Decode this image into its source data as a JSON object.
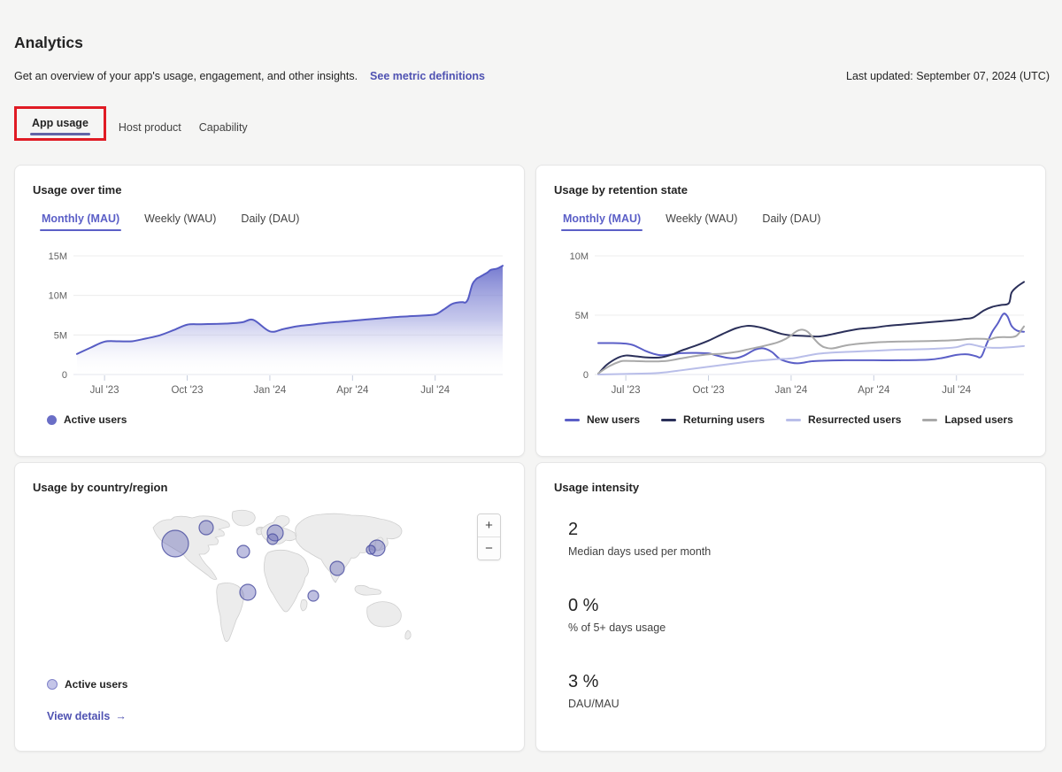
{
  "page": {
    "title": "Analytics",
    "subtitle": "Get an overview of your app's usage, engagement, and other insights.",
    "metric_definitions_link": "See metric definitions",
    "last_updated": "Last updated: September 07, 2024 (UTC)",
    "tabs": [
      {
        "label": "App usage"
      },
      {
        "label": "Host product"
      },
      {
        "label": "Capability"
      }
    ],
    "annotation_color": "#e01b24"
  },
  "cards": {
    "usage_over_time": {
      "title": "Usage over time",
      "tabs": [
        {
          "label": "Monthly (MAU)"
        },
        {
          "label": "Weekly (WAU)"
        },
        {
          "label": "Daily (DAU)"
        }
      ],
      "selected_tab": "Monthly (MAU)",
      "legend": [
        {
          "label": "Active users",
          "color": "#6a6ec6"
        }
      ]
    },
    "usage_by_retention_state": {
      "title": "Usage by retention state",
      "tabs": [
        {
          "label": "Monthly (MAU)"
        },
        {
          "label": "Weekly (WAU)"
        },
        {
          "label": "Daily (DAU)"
        }
      ],
      "selected_tab": "Monthly (MAU)",
      "legend": [
        {
          "label": "New users",
          "color": "#5b5fc7"
        },
        {
          "label": "Returning users",
          "color": "#2b305a"
        },
        {
          "label": "Resurrected users",
          "color": "#b9bee9"
        },
        {
          "label": "Lapsed users",
          "color": "#a9a9a9"
        }
      ]
    },
    "usage_by_country": {
      "title": "Usage by country/region",
      "legend_label": "Active users",
      "zoom_in": "+",
      "zoom_out": "−",
      "view_details": "View details",
      "arrow": "→"
    },
    "usage_intensity": {
      "title": "Usage intensity",
      "stats": [
        {
          "value": "2",
          "label": "Median days used per month"
        },
        {
          "value": "0 %",
          "label": "% of 5+ days usage"
        },
        {
          "value": "3 %",
          "label": "DAU/MAU"
        }
      ]
    }
  },
  "chart_data": [
    {
      "id": "usage-over-time",
      "type": "area",
      "title": "Usage over time",
      "unit": "users (millions)",
      "x_unit": "months since Jun 2023",
      "xlim": [
        0,
        15.45
      ],
      "ylim": [
        0,
        15
      ],
      "x_ticks": [
        {
          "m": 1,
          "label": "Jul '23"
        },
        {
          "m": 4,
          "label": "Oct '23"
        },
        {
          "m": 7,
          "label": "Jan '24"
        },
        {
          "m": 10,
          "label": "Apr '24"
        },
        {
          "m": 13,
          "label": "Jul '24"
        }
      ],
      "y_ticks": [
        {
          "v": 0,
          "label": "0"
        },
        {
          "v": 5,
          "label": "5M"
        },
        {
          "v": 10,
          "label": "10M"
        },
        {
          "v": 15,
          "label": "15M"
        }
      ],
      "series": [
        {
          "name": "Active users",
          "color": "#565cc4",
          "points": [
            [
              0,
              2.6
            ],
            [
              0.5,
              3.4
            ],
            [
              1,
              4.15
            ],
            [
              1.5,
              4.2
            ],
            [
              2,
              4.2
            ],
            [
              2.5,
              4.55
            ],
            [
              3,
              4.95
            ],
            [
              3.5,
              5.6
            ],
            [
              4,
              6.3
            ],
            [
              4.5,
              6.35
            ],
            [
              5,
              6.4
            ],
            [
              5.5,
              6.45
            ],
            [
              6,
              6.6
            ],
            [
              6.4,
              6.9
            ],
            [
              7,
              5.45
            ],
            [
              7.5,
              5.75
            ],
            [
              8,
              6.1
            ],
            [
              8.5,
              6.3
            ],
            [
              9,
              6.5
            ],
            [
              9.5,
              6.65
            ],
            [
              10,
              6.8
            ],
            [
              10.5,
              6.95
            ],
            [
              11,
              7.1
            ],
            [
              11.5,
              7.25
            ],
            [
              12,
              7.35
            ],
            [
              12.5,
              7.45
            ],
            [
              13,
              7.6
            ],
            [
              13.3,
              8.2
            ],
            [
              13.6,
              8.9
            ],
            [
              13.8,
              9.1
            ],
            [
              14,
              9.15
            ],
            [
              14.1,
              9.1
            ],
            [
              14.2,
              9.6
            ],
            [
              14.35,
              11.4
            ],
            [
              14.5,
              12.1
            ],
            [
              14.6,
              12.3
            ],
            [
              14.75,
              12.6
            ],
            [
              14.9,
              12.9
            ],
            [
              15,
              13.2
            ],
            [
              15.1,
              13.3
            ],
            [
              15.25,
              13.4
            ],
            [
              15.45,
              13.75
            ]
          ]
        }
      ]
    },
    {
      "id": "usage-by-retention-state",
      "type": "line",
      "title": "Usage by retention state",
      "unit": "users (millions)",
      "x_unit": "months since Jun 2023",
      "xlim": [
        0,
        15.45
      ],
      "ylim": [
        0,
        10
      ],
      "x_ticks": [
        {
          "m": 1,
          "label": "Jul '23"
        },
        {
          "m": 4,
          "label": "Oct '23"
        },
        {
          "m": 7,
          "label": "Jan '24"
        },
        {
          "m": 10,
          "label": "Apr '24"
        },
        {
          "m": 13,
          "label": "Jul '24"
        }
      ],
      "y_ticks": [
        {
          "v": 0,
          "label": "0"
        },
        {
          "v": 5,
          "label": "5M"
        },
        {
          "v": 10,
          "label": "10M"
        }
      ],
      "series": [
        {
          "name": "New users",
          "color": "#5b5fc7",
          "points": [
            [
              0,
              2.65
            ],
            [
              0.5,
              2.65
            ],
            [
              1,
              2.6
            ],
            [
              1.3,
              2.45
            ],
            [
              1.7,
              2.0
            ],
            [
              2,
              1.75
            ],
            [
              2.3,
              1.62
            ],
            [
              2.7,
              1.7
            ],
            [
              3,
              1.8
            ],
            [
              3.5,
              1.82
            ],
            [
              4,
              1.78
            ],
            [
              4.3,
              1.6
            ],
            [
              4.7,
              1.4
            ],
            [
              5,
              1.38
            ],
            [
              5.3,
              1.6
            ],
            [
              5.7,
              2.1
            ],
            [
              6,
              2.2
            ],
            [
              6.3,
              1.9
            ],
            [
              6.6,
              1.3
            ],
            [
              7,
              1.0
            ],
            [
              7.3,
              0.95
            ],
            [
              7.7,
              1.1
            ],
            [
              8,
              1.15
            ],
            [
              9,
              1.2
            ],
            [
              10,
              1.2
            ],
            [
              11,
              1.2
            ],
            [
              12,
              1.25
            ],
            [
              12.5,
              1.4
            ],
            [
              13,
              1.65
            ],
            [
              13.4,
              1.7
            ],
            [
              13.7,
              1.55
            ],
            [
              13.9,
              1.5
            ],
            [
              14.1,
              2.6
            ],
            [
              14.3,
              3.6
            ],
            [
              14.5,
              4.3
            ],
            [
              14.7,
              5.1
            ],
            [
              14.85,
              4.9
            ],
            [
              15,
              4.1
            ],
            [
              15.2,
              3.7
            ],
            [
              15.45,
              3.6
            ]
          ]
        },
        {
          "name": "Returning users",
          "color": "#2b305a",
          "points": [
            [
              0,
              0.05
            ],
            [
              0.3,
              0.8
            ],
            [
              0.7,
              1.4
            ],
            [
              1,
              1.6
            ],
            [
              1.3,
              1.55
            ],
            [
              1.7,
              1.45
            ],
            [
              2,
              1.42
            ],
            [
              2.3,
              1.45
            ],
            [
              2.7,
              1.7
            ],
            [
              3,
              2.0
            ],
            [
              3.5,
              2.4
            ],
            [
              4,
              2.85
            ],
            [
              4.5,
              3.4
            ],
            [
              5,
              3.9
            ],
            [
              5.4,
              4.1
            ],
            [
              5.7,
              4.05
            ],
            [
              6,
              3.9
            ],
            [
              6.4,
              3.6
            ],
            [
              6.7,
              3.4
            ],
            [
              7,
              3.3
            ],
            [
              7.5,
              3.25
            ],
            [
              8,
              3.2
            ],
            [
              8.5,
              3.4
            ],
            [
              9,
              3.65
            ],
            [
              9.5,
              3.85
            ],
            [
              10,
              3.95
            ],
            [
              10.5,
              4.1
            ],
            [
              11,
              4.2
            ],
            [
              11.5,
              4.3
            ],
            [
              12,
              4.4
            ],
            [
              12.5,
              4.5
            ],
            [
              13,
              4.6
            ],
            [
              13.3,
              4.7
            ],
            [
              13.6,
              4.8
            ],
            [
              14,
              5.4
            ],
            [
              14.3,
              5.7
            ],
            [
              14.6,
              5.85
            ],
            [
              14.9,
              6.0
            ],
            [
              15,
              6.9
            ],
            [
              15.2,
              7.4
            ],
            [
              15.45,
              7.8
            ]
          ]
        },
        {
          "name": "Resurrected users",
          "color": "#b9bee9",
          "points": [
            [
              0,
              0.0
            ],
            [
              1,
              0.05
            ],
            [
              2,
              0.1
            ],
            [
              2.5,
              0.2
            ],
            [
              3,
              0.35
            ],
            [
              3.5,
              0.5
            ],
            [
              4,
              0.65
            ],
            [
              4.5,
              0.8
            ],
            [
              5,
              0.95
            ],
            [
              5.5,
              1.1
            ],
            [
              6,
              1.2
            ],
            [
              6.5,
              1.3
            ],
            [
              7,
              1.35
            ],
            [
              7.5,
              1.55
            ],
            [
              8,
              1.75
            ],
            [
              8.5,
              1.85
            ],
            [
              9,
              1.9
            ],
            [
              9.5,
              1.95
            ],
            [
              10,
              2.0
            ],
            [
              10.5,
              2.05
            ],
            [
              11,
              2.1
            ],
            [
              11.5,
              2.12
            ],
            [
              12,
              2.15
            ],
            [
              12.5,
              2.2
            ],
            [
              13,
              2.3
            ],
            [
              13.3,
              2.5
            ],
            [
              13.5,
              2.55
            ],
            [
              13.8,
              2.4
            ],
            [
              14,
              2.3
            ],
            [
              14.3,
              2.25
            ],
            [
              14.6,
              2.25
            ],
            [
              15,
              2.3
            ],
            [
              15.45,
              2.4
            ]
          ]
        },
        {
          "name": "Lapsed users",
          "color": "#a9a9a9",
          "points": [
            [
              0,
              0.1
            ],
            [
              0.4,
              0.7
            ],
            [
              0.8,
              1.1
            ],
            [
              1,
              1.15
            ],
            [
              1.5,
              1.12
            ],
            [
              2,
              1.1
            ],
            [
              2.5,
              1.15
            ],
            [
              3,
              1.35
            ],
            [
              3.5,
              1.55
            ],
            [
              4,
              1.7
            ],
            [
              4.5,
              1.75
            ],
            [
              5,
              1.9
            ],
            [
              5.5,
              2.15
            ],
            [
              6,
              2.4
            ],
            [
              6.5,
              2.7
            ],
            [
              6.8,
              3.0
            ],
            [
              7,
              3.3
            ],
            [
              7.2,
              3.65
            ],
            [
              7.4,
              3.78
            ],
            [
              7.6,
              3.6
            ],
            [
              7.8,
              3.1
            ],
            [
              8,
              2.6
            ],
            [
              8.2,
              2.3
            ],
            [
              8.5,
              2.2
            ],
            [
              9,
              2.45
            ],
            [
              9.5,
              2.6
            ],
            [
              10,
              2.7
            ],
            [
              10.5,
              2.75
            ],
            [
              11,
              2.78
            ],
            [
              11.5,
              2.8
            ],
            [
              12,
              2.82
            ],
            [
              12.5,
              2.85
            ],
            [
              13,
              2.9
            ],
            [
              13.5,
              3.0
            ],
            [
              14,
              3.0
            ],
            [
              14.2,
              2.95
            ],
            [
              14.4,
              3.1
            ],
            [
              14.7,
              3.15
            ],
            [
              15,
              3.15
            ],
            [
              15.2,
              3.3
            ],
            [
              15.45,
              4.05
            ]
          ]
        }
      ]
    },
    {
      "id": "usage-by-country-region",
      "type": "bubble-map",
      "title": "Usage by country/region",
      "legend": "Active users",
      "bubble_fill": "rgba(99,102,181,0.42)",
      "bubble_stroke": "rgba(79,82,162,0.85)",
      "bubbles": [
        {
          "region": "north-america-west",
          "x": 31,
          "y": 40,
          "r": 15
        },
        {
          "region": "canada-east",
          "x": 66,
          "y": 22,
          "r": 8
        },
        {
          "region": "europe-large",
          "x": 144,
          "y": 28,
          "r": 9
        },
        {
          "region": "europe-small",
          "x": 141,
          "y": 35,
          "r": 6
        },
        {
          "region": "mid-atlantic",
          "x": 108,
          "y": 49,
          "r": 7
        },
        {
          "region": "gulf-of-guinea",
          "x": 113,
          "y": 95,
          "r": 9
        },
        {
          "region": "india",
          "x": 214,
          "y": 68,
          "r": 8
        },
        {
          "region": "indian-ocean",
          "x": 187,
          "y": 99,
          "r": 6
        },
        {
          "region": "east-asia-large",
          "x": 259,
          "y": 45,
          "r": 9
        },
        {
          "region": "east-asia-small",
          "x": 252,
          "y": 47,
          "r": 5
        }
      ]
    }
  ]
}
